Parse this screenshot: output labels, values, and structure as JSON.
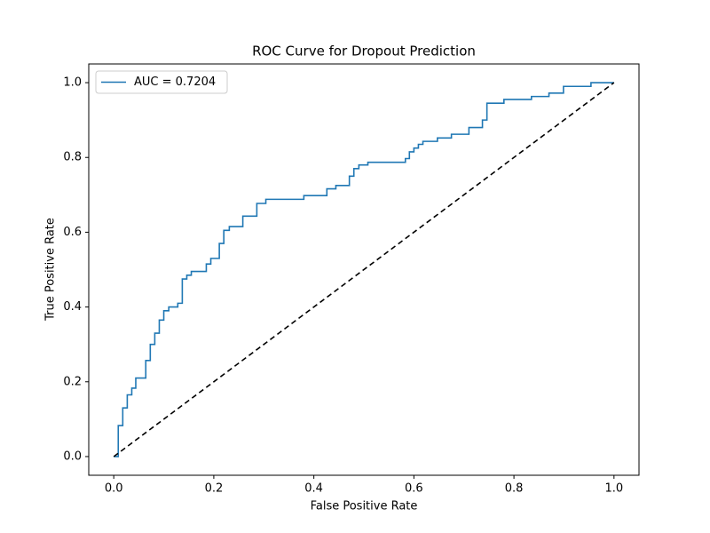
{
  "chart_data": {
    "type": "line",
    "title": "ROC Curve for Dropout Prediction",
    "x_label": "False Positive Rate",
    "y_label": "True Positive Rate",
    "xlim": [
      -0.05,
      1.05
    ],
    "ylim": [
      -0.05,
      1.05
    ],
    "xticks": [
      {
        "value": 0,
        "label": "0.0"
      },
      {
        "value": 0.2,
        "label": "0.2"
      },
      {
        "value": 0.4,
        "label": "0.4"
      },
      {
        "value": 0.6,
        "label": "0.6"
      },
      {
        "value": 0.8,
        "label": "0.8"
      },
      {
        "value": 1,
        "label": "1.0"
      }
    ],
    "yticks": [
      {
        "value": 0,
        "label": "0.0"
      },
      {
        "value": 0.2,
        "label": "0.2"
      },
      {
        "value": 0.4,
        "label": "0.4"
      },
      {
        "value": 0.6,
        "label": "0.6"
      },
      {
        "value": 0.8,
        "label": "0.8"
      },
      {
        "value": 1,
        "label": "1.0"
      }
    ],
    "legend": "upper left",
    "series": [
      {
        "name": "AUC = 0.7204",
        "color": "#1f77b4",
        "x": [
          0,
          0.009,
          0.009,
          0.018,
          0.018,
          0.027,
          0.027,
          0.036,
          0.036,
          0.044,
          0.044,
          0.064,
          0.064,
          0.073,
          0.073,
          0.082,
          0.082,
          0.091,
          0.091,
          0.1,
          0.1,
          0.11,
          0.11,
          0.128,
          0.128,
          0.137,
          0.137,
          0.146,
          0.146,
          0.155,
          0.155,
          0.185,
          0.185,
          0.194,
          0.194,
          0.211,
          0.211,
          0.22,
          0.22,
          0.231,
          0.231,
          0.258,
          0.258,
          0.286,
          0.286,
          0.304,
          0.304,
          0.38,
          0.38,
          0.426,
          0.426,
          0.444,
          0.444,
          0.471,
          0.471,
          0.48,
          0.48,
          0.49,
          0.49,
          0.508,
          0.508,
          0.583,
          0.583,
          0.591,
          0.591,
          0.6,
          0.6,
          0.609,
          0.609,
          0.618,
          0.618,
          0.647,
          0.647,
          0.675,
          0.675,
          0.71,
          0.71,
          0.737,
          0.737,
          0.746,
          0.746,
          0.78,
          0.78,
          0.835,
          0.835,
          0.87,
          0.87,
          0.899,
          0.899,
          0.954,
          0.954,
          1.0
        ],
        "values": [
          0,
          0,
          0.083,
          0.083,
          0.13,
          0.13,
          0.165,
          0.165,
          0.183,
          0.183,
          0.21,
          0.21,
          0.257,
          0.257,
          0.3,
          0.3,
          0.33,
          0.33,
          0.365,
          0.365,
          0.39,
          0.39,
          0.4,
          0.4,
          0.41,
          0.41,
          0.475,
          0.475,
          0.485,
          0.485,
          0.495,
          0.495,
          0.515,
          0.515,
          0.53,
          0.53,
          0.57,
          0.57,
          0.605,
          0.605,
          0.615,
          0.615,
          0.643,
          0.643,
          0.677,
          0.677,
          0.688,
          0.688,
          0.698,
          0.698,
          0.716,
          0.716,
          0.725,
          0.725,
          0.75,
          0.75,
          0.77,
          0.77,
          0.78,
          0.78,
          0.787,
          0.787,
          0.797,
          0.797,
          0.815,
          0.815,
          0.825,
          0.825,
          0.835,
          0.835,
          0.843,
          0.843,
          0.852,
          0.852,
          0.862,
          0.862,
          0.88,
          0.88,
          0.9,
          0.9,
          0.945,
          0.945,
          0.955,
          0.955,
          0.963,
          0.963,
          0.972,
          0.972,
          0.99,
          0.99,
          1.0,
          1.0
        ]
      },
      {
        "color": "#000000",
        "dashed": true,
        "x": [
          0,
          1
        ],
        "values": [
          0,
          1
        ]
      }
    ]
  }
}
